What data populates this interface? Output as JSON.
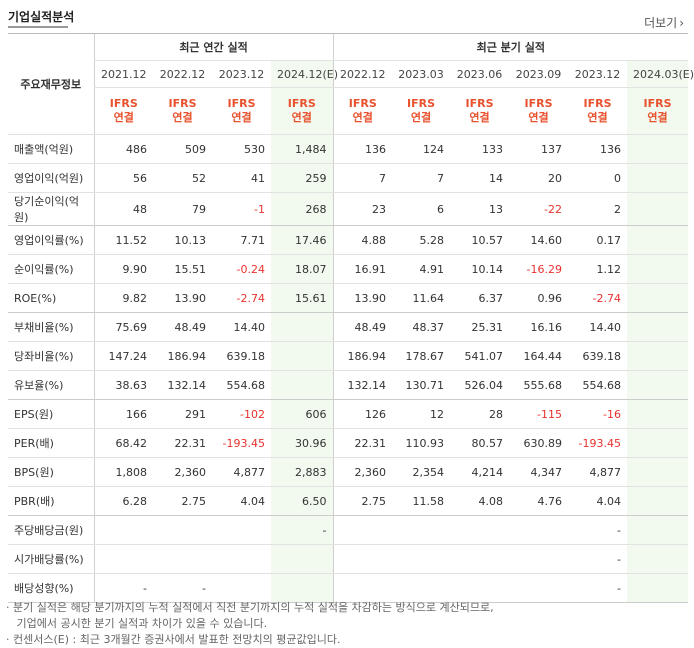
{
  "header": {
    "title": "기업실적분석",
    "more_label": "더보기",
    "more_icon": "chevron-right-icon"
  },
  "columns": {
    "row_label_header": "주요재무정보",
    "annual_group": "최근 연간 실적",
    "quarter_group": "최근 분기 실적",
    "annual": [
      "2021.12",
      "2022.12",
      "2023.12",
      "2024.12(E)"
    ],
    "quarter": [
      "2022.12",
      "2023.03",
      "2023.06",
      "2023.09",
      "2023.12",
      "2024.03(E)"
    ],
    "ifrs_top": "IFRS",
    "ifrs_bottom": "연결"
  },
  "rows": [
    {
      "label": "매출액(억원)",
      "annual": [
        "486",
        "509",
        "530",
        "1,484"
      ],
      "quarter": [
        "136",
        "124",
        "133",
        "137",
        "136",
        ""
      ],
      "group_end": false
    },
    {
      "label": "영업이익(억원)",
      "annual": [
        "56",
        "52",
        "41",
        "259"
      ],
      "quarter": [
        "7",
        "7",
        "14",
        "20",
        "0",
        ""
      ],
      "group_end": false
    },
    {
      "label": "당기순이익(억원)",
      "annual": [
        "48",
        "79",
        "-1",
        "268"
      ],
      "quarter": [
        "23",
        "6",
        "13",
        "-22",
        "2",
        ""
      ],
      "group_end": true
    },
    {
      "label": "영업이익률(%)",
      "annual": [
        "11.52",
        "10.13",
        "7.71",
        "17.46"
      ],
      "quarter": [
        "4.88",
        "5.28",
        "10.57",
        "14.60",
        "0.17",
        ""
      ],
      "group_end": false
    },
    {
      "label": "순이익률(%)",
      "annual": [
        "9.90",
        "15.51",
        "-0.24",
        "18.07"
      ],
      "quarter": [
        "16.91",
        "4.91",
        "10.14",
        "-16.29",
        "1.12",
        ""
      ],
      "group_end": false
    },
    {
      "label": "ROE(%)",
      "annual": [
        "9.82",
        "13.90",
        "-2.74",
        "15.61"
      ],
      "quarter": [
        "13.90",
        "11.64",
        "6.37",
        "0.96",
        "-2.74",
        ""
      ],
      "group_end": true
    },
    {
      "label": "부채비율(%)",
      "annual": [
        "75.69",
        "48.49",
        "14.40",
        ""
      ],
      "quarter": [
        "48.49",
        "48.37",
        "25.31",
        "16.16",
        "14.40",
        ""
      ],
      "group_end": false
    },
    {
      "label": "당좌비율(%)",
      "annual": [
        "147.24",
        "186.94",
        "639.18",
        ""
      ],
      "quarter": [
        "186.94",
        "178.67",
        "541.07",
        "164.44",
        "639.18",
        ""
      ],
      "group_end": false
    },
    {
      "label": "유보율(%)",
      "annual": [
        "38.63",
        "132.14",
        "554.68",
        ""
      ],
      "quarter": [
        "132.14",
        "130.71",
        "526.04",
        "555.68",
        "554.68",
        ""
      ],
      "group_end": true
    },
    {
      "label": "EPS(원)",
      "annual": [
        "166",
        "291",
        "-102",
        "606"
      ],
      "quarter": [
        "126",
        "12",
        "28",
        "-115",
        "-16",
        ""
      ],
      "group_end": false
    },
    {
      "label": "PER(배)",
      "annual": [
        "68.42",
        "22.31",
        "-193.45",
        "30.96"
      ],
      "quarter": [
        "22.31",
        "110.93",
        "80.57",
        "630.89",
        "-193.45",
        ""
      ],
      "group_end": false
    },
    {
      "label": "BPS(원)",
      "annual": [
        "1,808",
        "2,360",
        "4,877",
        "2,883"
      ],
      "quarter": [
        "2,360",
        "2,354",
        "4,214",
        "4,347",
        "4,877",
        ""
      ],
      "group_end": false
    },
    {
      "label": "PBR(배)",
      "annual": [
        "6.28",
        "2.75",
        "4.04",
        "6.50"
      ],
      "quarter": [
        "2.75",
        "11.58",
        "4.08",
        "4.76",
        "4.04",
        ""
      ],
      "group_end": true
    },
    {
      "label": "주당배당금(원)",
      "annual": [
        "",
        "",
        "",
        "-"
      ],
      "quarter": [
        "",
        "",
        "",
        "",
        "-",
        ""
      ],
      "group_end": false
    },
    {
      "label": "시가배당률(%)",
      "annual": [
        "",
        "",
        "",
        ""
      ],
      "quarter": [
        "",
        "",
        "",
        "",
        "-",
        ""
      ],
      "group_end": false
    },
    {
      "label": "배당성향(%)",
      "annual": [
        "-",
        "-",
        "",
        ""
      ],
      "quarter": [
        "",
        "",
        "",
        "",
        "-",
        ""
      ],
      "group_end": true
    }
  ],
  "notes": [
    "· 분기 실적은 해당 분기까지의 누적 실적에서 직전 분기까지의 누적 실적을 차감하는 방식으로 계산되므로,",
    "   기업에서 공시한 분기 실적과 차이가 있을 수 있습니다.",
    "· 컨센서스(E) : 최근 3개월간 증권사에서 발표한 전망치의 평균값입니다."
  ]
}
